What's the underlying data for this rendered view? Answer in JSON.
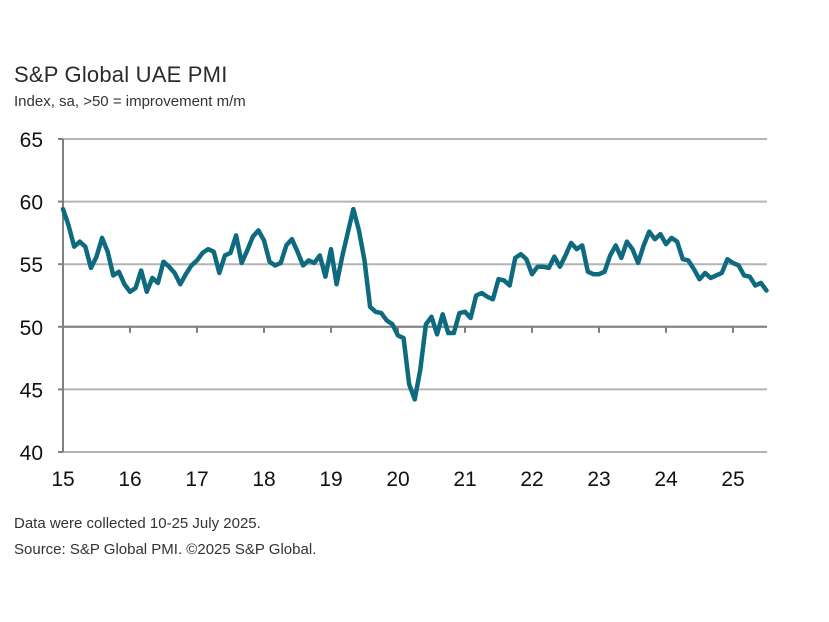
{
  "chart_data": {
    "type": "line",
    "title": "S&P Global UAE PMI",
    "subtitle": "Index, sa, >50 = improvement m/m",
    "xlabel": "",
    "ylabel": "",
    "ylim": [
      40,
      65
    ],
    "yticks": [
      40,
      45,
      50,
      55,
      60,
      65
    ],
    "ytick_labels": [
      "40",
      "45",
      "50",
      "55",
      "60",
      "65"
    ],
    "x_tick_labels": [
      "15",
      "16",
      "17",
      "18",
      "19",
      "20",
      "21",
      "22",
      "23",
      "24",
      "25"
    ],
    "x_start": "2015-01",
    "x_end": "2025-07",
    "frequency": "monthly",
    "grid": true,
    "x_axis_crosses_at": 50,
    "series": [
      {
        "name": "S&P Global UAE PMI",
        "color": "#0e6a7e",
        "values": [
          59.4,
          58.1,
          56.4,
          56.8,
          56.4,
          54.7,
          55.6,
          57.1,
          56.0,
          54.1,
          54.4,
          53.4,
          52.8,
          53.1,
          54.5,
          52.8,
          53.9,
          53.5,
          55.2,
          54.8,
          54.3,
          53.4,
          54.2,
          54.9,
          55.3,
          55.9,
          56.2,
          56.0,
          54.3,
          55.7,
          55.9,
          57.3,
          55.1,
          56.1,
          57.2,
          57.7,
          56.9,
          55.2,
          54.9,
          55.1,
          56.5,
          57.0,
          56.0,
          54.9,
          55.3,
          55.1,
          55.7,
          54.0,
          56.2,
          53.4,
          55.6,
          57.5,
          59.4,
          57.7,
          55.3,
          51.6,
          51.2,
          51.1,
          50.5,
          50.2,
          49.3,
          49.1,
          45.4,
          44.2,
          46.6,
          50.2,
          50.8,
          49.4,
          51.0,
          49.5,
          49.5,
          51.1,
          51.2,
          50.7,
          52.5,
          52.7,
          52.4,
          52.2,
          53.8,
          53.7,
          53.3,
          55.5,
          55.8,
          55.4,
          54.2,
          54.8,
          54.8,
          54.7,
          55.6,
          54.8,
          55.7,
          56.7,
          56.2,
          56.5,
          54.4,
          54.2,
          54.2,
          54.4,
          55.7,
          56.5,
          55.5,
          56.8,
          56.2,
          55.1,
          56.5,
          57.6,
          57.0,
          57.4,
          56.6,
          57.1,
          56.8,
          55.4,
          55.3,
          54.6,
          53.8,
          54.3,
          53.9,
          54.1,
          54.3,
          55.4,
          55.1,
          54.9,
          54.1,
          54.0,
          53.3,
          53.5,
          52.9
        ]
      }
    ],
    "colors": {
      "line": "#0e6a7e",
      "grid": "#b4b4b4",
      "axis": "#808080"
    }
  },
  "footnotes": {
    "collection": "Data were collected 10-25 July 2025.",
    "source": "Source: S&P Global PMI. ©2025 S&P Global."
  }
}
